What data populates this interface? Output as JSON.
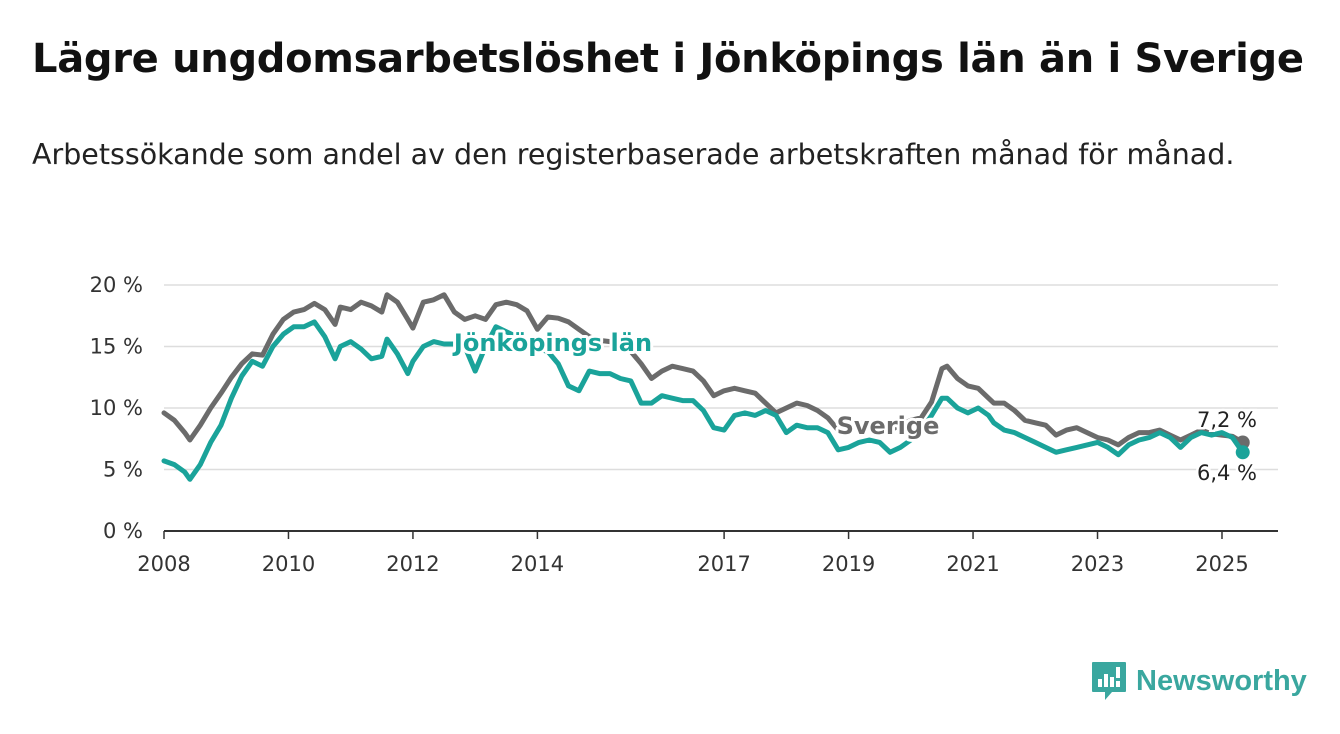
{
  "title": "Lägre ungdomsarbetslöshet i Jönköpings län än i Sverige",
  "subtitle": "Arbetssökande som andel av den registerbaserade arbetskraften månad för månad.",
  "brand": {
    "name": "Newsworthy",
    "color": "#3aa79f"
  },
  "chart_data": {
    "type": "line",
    "x_ticks": [
      "2008",
      "2010",
      "2012",
      "2014",
      "2017",
      "2019",
      "2021",
      "2023",
      "2025"
    ],
    "y_ticks": [
      "0 %",
      "5 %",
      "10 %",
      "15 %",
      "20 %"
    ],
    "ylim": [
      0,
      20
    ],
    "grid": true,
    "series": [
      {
        "name": "Sverige",
        "color": "#6b6b6b",
        "end_label": "7,2 %",
        "points": [
          [
            "2008-01",
            9.6
          ],
          [
            "2008-03",
            9.0
          ],
          [
            "2008-05",
            8.0
          ],
          [
            "2008-06",
            7.4
          ],
          [
            "2008-08",
            8.6
          ],
          [
            "2008-10",
            10.0
          ],
          [
            "2008-12",
            11.2
          ],
          [
            "2009-02",
            12.5
          ],
          [
            "2009-04",
            13.6
          ],
          [
            "2009-06",
            14.4
          ],
          [
            "2009-08",
            14.3
          ],
          [
            "2009-10",
            16.0
          ],
          [
            "2009-12",
            17.2
          ],
          [
            "2010-02",
            17.8
          ],
          [
            "2010-04",
            18.0
          ],
          [
            "2010-06",
            18.5
          ],
          [
            "2010-08",
            18.0
          ],
          [
            "2010-10",
            16.8
          ],
          [
            "2010-11",
            18.2
          ],
          [
            "2011-01",
            18.0
          ],
          [
            "2011-03",
            18.6
          ],
          [
            "2011-05",
            18.3
          ],
          [
            "2011-07",
            17.8
          ],
          [
            "2011-08",
            19.2
          ],
          [
            "2011-10",
            18.6
          ],
          [
            "2011-12",
            17.2
          ],
          [
            "2012-01",
            16.5
          ],
          [
            "2012-03",
            18.6
          ],
          [
            "2012-05",
            18.8
          ],
          [
            "2012-07",
            19.2
          ],
          [
            "2012-09",
            17.8
          ],
          [
            "2012-11",
            17.2
          ],
          [
            "2013-01",
            17.5
          ],
          [
            "2013-03",
            17.2
          ],
          [
            "2013-05",
            18.4
          ],
          [
            "2013-07",
            18.6
          ],
          [
            "2013-09",
            18.4
          ],
          [
            "2013-11",
            17.9
          ],
          [
            "2014-01",
            16.4
          ],
          [
            "2014-03",
            17.4
          ],
          [
            "2014-05",
            17.3
          ],
          [
            "2014-07",
            17.0
          ],
          [
            "2014-09",
            16.4
          ],
          [
            "2014-11",
            15.8
          ],
          [
            "2015-01",
            15.5
          ],
          [
            "2015-03",
            15.4
          ],
          [
            "2015-05",
            15.2
          ],
          [
            "2015-07",
            14.6
          ],
          [
            "2015-09",
            13.6
          ],
          [
            "2015-11",
            12.4
          ],
          [
            "2016-01",
            13.0
          ],
          [
            "2016-03",
            13.4
          ],
          [
            "2016-05",
            13.2
          ],
          [
            "2016-07",
            13.0
          ],
          [
            "2016-09",
            12.2
          ],
          [
            "2016-11",
            11.0
          ],
          [
            "2017-01",
            11.4
          ],
          [
            "2017-03",
            11.6
          ],
          [
            "2017-05",
            11.4
          ],
          [
            "2017-07",
            11.2
          ],
          [
            "2017-09",
            10.4
          ],
          [
            "2017-11",
            9.6
          ],
          [
            "2018-01",
            10.0
          ],
          [
            "2018-03",
            10.4
          ],
          [
            "2018-05",
            10.2
          ],
          [
            "2018-07",
            9.8
          ],
          [
            "2018-09",
            9.2
          ],
          [
            "2018-11",
            8.2
          ],
          [
            "2019-01",
            8.6
          ],
          [
            "2019-03",
            8.8
          ],
          [
            "2019-05",
            8.6
          ],
          [
            "2019-07",
            8.4
          ],
          [
            "2019-09",
            8.2
          ],
          [
            "2019-11",
            8.6
          ],
          [
            "2020-01",
            9.0
          ],
          [
            "2020-03",
            9.2
          ],
          [
            "2020-05",
            10.5
          ],
          [
            "2020-07",
            13.2
          ],
          [
            "2020-08",
            13.4
          ],
          [
            "2020-10",
            12.4
          ],
          [
            "2020-12",
            11.8
          ],
          [
            "2021-02",
            11.6
          ],
          [
            "2021-04",
            10.8
          ],
          [
            "2021-05",
            10.4
          ],
          [
            "2021-07",
            10.4
          ],
          [
            "2021-09",
            9.8
          ],
          [
            "2021-11",
            9.0
          ],
          [
            "2022-01",
            8.8
          ],
          [
            "2022-03",
            8.6
          ],
          [
            "2022-05",
            7.8
          ],
          [
            "2022-07",
            8.2
          ],
          [
            "2022-09",
            8.4
          ],
          [
            "2022-11",
            8.0
          ],
          [
            "2023-01",
            7.6
          ],
          [
            "2023-03",
            7.4
          ],
          [
            "2023-05",
            7.0
          ],
          [
            "2023-07",
            7.6
          ],
          [
            "2023-09",
            8.0
          ],
          [
            "2023-11",
            8.0
          ],
          [
            "2024-01",
            8.2
          ],
          [
            "2024-03",
            7.8
          ],
          [
            "2024-05",
            7.4
          ],
          [
            "2024-07",
            7.8
          ],
          [
            "2024-09",
            8.2
          ],
          [
            "2024-11",
            7.9
          ],
          [
            "2025-01",
            7.8
          ],
          [
            "2025-03",
            7.7
          ],
          [
            "2025-05",
            7.2
          ]
        ]
      },
      {
        "name": "Jönköpings län",
        "color": "#1aa39a",
        "end_label": "6,4 %",
        "points": [
          [
            "2008-01",
            5.7
          ],
          [
            "2008-03",
            5.4
          ],
          [
            "2008-05",
            4.8
          ],
          [
            "2008-06",
            4.2
          ],
          [
            "2008-08",
            5.4
          ],
          [
            "2008-10",
            7.2
          ],
          [
            "2008-12",
            8.6
          ],
          [
            "2009-02",
            10.8
          ],
          [
            "2009-04",
            12.6
          ],
          [
            "2009-06",
            13.8
          ],
          [
            "2009-08",
            13.4
          ],
          [
            "2009-10",
            15.0
          ],
          [
            "2009-12",
            16.0
          ],
          [
            "2010-02",
            16.6
          ],
          [
            "2010-04",
            16.6
          ],
          [
            "2010-06",
            17.0
          ],
          [
            "2010-08",
            15.8
          ],
          [
            "2010-10",
            14.0
          ],
          [
            "2010-11",
            15.0
          ],
          [
            "2011-01",
            15.4
          ],
          [
            "2011-03",
            14.8
          ],
          [
            "2011-05",
            14.0
          ],
          [
            "2011-07",
            14.2
          ],
          [
            "2011-08",
            15.6
          ],
          [
            "2011-10",
            14.4
          ],
          [
            "2011-12",
            12.8
          ],
          [
            "2012-01",
            13.8
          ],
          [
            "2012-03",
            15.0
          ],
          [
            "2012-05",
            15.4
          ],
          [
            "2012-07",
            15.2
          ],
          [
            "2012-09",
            15.2
          ],
          [
            "2012-11",
            15.0
          ],
          [
            "2013-01",
            13.0
          ],
          [
            "2013-03",
            15.0
          ],
          [
            "2013-05",
            16.6
          ],
          [
            "2013-07",
            16.2
          ],
          [
            "2013-09",
            15.8
          ],
          [
            "2013-11",
            15.4
          ],
          [
            "2014-01",
            14.8
          ],
          [
            "2014-03",
            14.6
          ],
          [
            "2014-05",
            13.6
          ],
          [
            "2014-07",
            11.8
          ],
          [
            "2014-09",
            11.4
          ],
          [
            "2014-11",
            13.0
          ],
          [
            "2015-01",
            12.8
          ],
          [
            "2015-03",
            12.8
          ],
          [
            "2015-05",
            12.4
          ],
          [
            "2015-07",
            12.2
          ],
          [
            "2015-09",
            10.4
          ],
          [
            "2015-11",
            10.4
          ],
          [
            "2016-01",
            11.0
          ],
          [
            "2016-03",
            10.8
          ],
          [
            "2016-05",
            10.6
          ],
          [
            "2016-07",
            10.6
          ],
          [
            "2016-09",
            9.8
          ],
          [
            "2016-11",
            8.4
          ],
          [
            "2017-01",
            8.2
          ],
          [
            "2017-03",
            9.4
          ],
          [
            "2017-05",
            9.6
          ],
          [
            "2017-07",
            9.4
          ],
          [
            "2017-09",
            9.8
          ],
          [
            "2017-11",
            9.4
          ],
          [
            "2018-01",
            8.0
          ],
          [
            "2018-03",
            8.6
          ],
          [
            "2018-05",
            8.4
          ],
          [
            "2018-07",
            8.4
          ],
          [
            "2018-09",
            8.0
          ],
          [
            "2018-11",
            6.6
          ],
          [
            "2019-01",
            6.8
          ],
          [
            "2019-03",
            7.2
          ],
          [
            "2019-05",
            7.4
          ],
          [
            "2019-07",
            7.2
          ],
          [
            "2019-09",
            6.4
          ],
          [
            "2019-11",
            6.8
          ],
          [
            "2020-01",
            7.4
          ],
          [
            "2020-03",
            8.2
          ],
          [
            "2020-05",
            9.4
          ],
          [
            "2020-07",
            10.8
          ],
          [
            "2020-08",
            10.8
          ],
          [
            "2020-10",
            10.0
          ],
          [
            "2020-12",
            9.6
          ],
          [
            "2021-02",
            10.0
          ],
          [
            "2021-04",
            9.4
          ],
          [
            "2021-05",
            8.8
          ],
          [
            "2021-07",
            8.2
          ],
          [
            "2021-09",
            8.0
          ],
          [
            "2021-11",
            7.6
          ],
          [
            "2022-01",
            7.2
          ],
          [
            "2022-03",
            6.8
          ],
          [
            "2022-05",
            6.4
          ],
          [
            "2022-07",
            6.6
          ],
          [
            "2022-09",
            6.8
          ],
          [
            "2022-11",
            7.0
          ],
          [
            "2023-01",
            7.2
          ],
          [
            "2023-03",
            6.8
          ],
          [
            "2023-05",
            6.2
          ],
          [
            "2023-07",
            7.0
          ],
          [
            "2023-09",
            7.4
          ],
          [
            "2023-11",
            7.6
          ],
          [
            "2024-01",
            8.0
          ],
          [
            "2024-03",
            7.6
          ],
          [
            "2024-05",
            6.8
          ],
          [
            "2024-07",
            7.6
          ],
          [
            "2024-09",
            8.0
          ],
          [
            "2024-11",
            7.8
          ],
          [
            "2025-01",
            8.0
          ],
          [
            "2025-03",
            7.6
          ],
          [
            "2025-05",
            6.4
          ]
        ]
      }
    ]
  }
}
